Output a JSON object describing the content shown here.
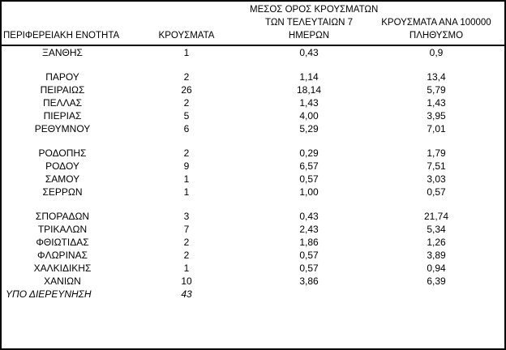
{
  "colors": {
    "background": "#ffffff",
    "border": "#000000",
    "text": "#000000"
  },
  "table": {
    "headers": {
      "region": "ΠΕΡΙΦΕΡΕΙΑΚΗ ΕΝΟΤΗΤΑ",
      "cases": "ΚΡΟΥΣΜΑΤΑ",
      "avg7_line1": "ΜΕΣΟΣ ΟΡΟΣ ΚΡΟΥΣΜΑΤΩΝ",
      "avg7_line2": "ΤΩΝ ΤΕΛΕΥΤΑΙΩΝ 7",
      "avg7_line3": "ΗΜΕΡΩΝ",
      "per100k_line1": "ΚΡΟΥΣΜΑΤΑ ΑΝΑ 100000",
      "per100k_line2": "ΠΛΗΘΥΣΜΟ"
    },
    "groups": [
      {
        "rows": [
          {
            "region": "ΞΑΝΘΗΣ",
            "cases": "1",
            "avg7": "0,43",
            "per100k": "0,9",
            "italic": false
          }
        ]
      },
      {
        "rows": [
          {
            "region": "ΠΑΡΟΥ",
            "cases": "2",
            "avg7": "1,14",
            "per100k": "13,4",
            "italic": false
          },
          {
            "region": "ΠΕΙΡΑΙΩΣ",
            "cases": "26",
            "avg7": "18,14",
            "per100k": "5,79",
            "italic": false
          },
          {
            "region": "ΠΕΛΛΑΣ",
            "cases": "2",
            "avg7": "1,43",
            "per100k": "1,43",
            "italic": false
          },
          {
            "region": "ΠΙΕΡΙΑΣ",
            "cases": "5",
            "avg7": "4,00",
            "per100k": "3,95",
            "italic": false
          },
          {
            "region": "ΡΕΘΥΜΝΟΥ",
            "cases": "6",
            "avg7": "5,29",
            "per100k": "7,01",
            "italic": false
          }
        ]
      },
      {
        "rows": [
          {
            "region": "ΡΟΔΟΠΗΣ",
            "cases": "2",
            "avg7": "0,29",
            "per100k": "1,79",
            "italic": false
          },
          {
            "region": "ΡΟΔΟΥ",
            "cases": "9",
            "avg7": "6,57",
            "per100k": "7,51",
            "italic": false
          },
          {
            "region": "ΣΑΜΟΥ",
            "cases": "1",
            "avg7": "0,57",
            "per100k": "3,03",
            "italic": false
          },
          {
            "region": "ΣΕΡΡΩΝ",
            "cases": "1",
            "avg7": "1,00",
            "per100k": "0,57",
            "italic": false
          }
        ]
      },
      {
        "rows": [
          {
            "region": "ΣΠΟΡΑΔΩΝ",
            "cases": "3",
            "avg7": "0,43",
            "per100k": "21,74",
            "italic": false
          },
          {
            "region": "ΤΡΙΚΑΛΩΝ",
            "cases": "7",
            "avg7": "2,43",
            "per100k": "5,34",
            "italic": false
          },
          {
            "region": "ΦΘΙΩΤΙΔΑΣ",
            "cases": "2",
            "avg7": "1,86",
            "per100k": "1,26",
            "italic": false
          },
          {
            "region": "ΦΛΩΡΙΝΑΣ",
            "cases": "2",
            "avg7": "0,57",
            "per100k": "3,89",
            "italic": false
          },
          {
            "region": "ΧΑΛΚΙΔΙΚΗΣ",
            "cases": "1",
            "avg7": "0,57",
            "per100k": "0,94",
            "italic": false
          },
          {
            "region": "ΧΑΝΙΩΝ",
            "cases": "10",
            "avg7": "3,86",
            "per100k": "6,39",
            "italic": false
          },
          {
            "region": "ΥΠΟ ΔΙΕΡΕΥΝΗΣΗ",
            "cases": "43",
            "avg7": "",
            "per100k": "",
            "italic": true,
            "region_align": "left"
          }
        ]
      }
    ]
  }
}
